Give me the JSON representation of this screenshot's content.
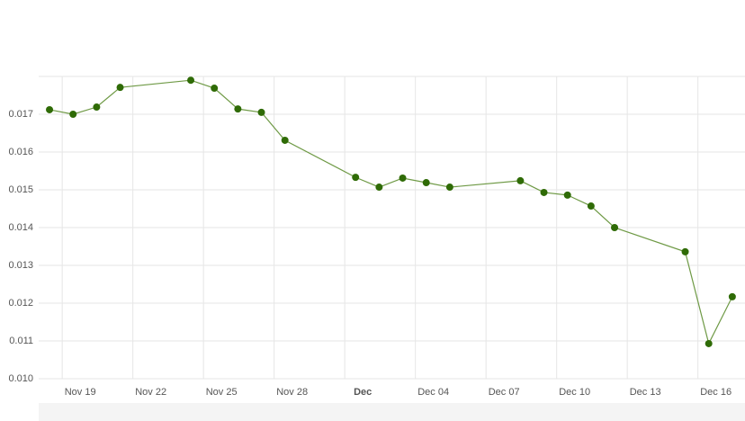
{
  "chart_data": {
    "type": "line",
    "x": [
      "Nov 18",
      "Nov 19",
      "Nov 20",
      "Nov 21",
      "Nov 24",
      "Nov 25",
      "Nov 26",
      "Nov 27",
      "Nov 28",
      "Dec 01",
      "Dec 02",
      "Dec 03",
      "Dec 04",
      "Dec 05",
      "Dec 08",
      "Dec 09",
      "Dec 10",
      "Dec 11",
      "Dec 12",
      "Dec 15",
      "Dec 16",
      "Dec 17"
    ],
    "series": [
      {
        "color": "#2f6b06",
        "values": [
          0.01712,
          0.017,
          0.01719,
          0.01771,
          0.0179,
          0.01769,
          0.01714,
          0.01705,
          0.01631,
          0.01533,
          0.01507,
          0.01531,
          0.01519,
          0.01507,
          0.01524,
          0.01493,
          0.01486,
          0.01457,
          0.014,
          0.01336,
          0.01093,
          0.01217
        ]
      }
    ],
    "xlim": [
      "Nov 18",
      "Dec 18"
    ],
    "xticks": [
      "Nov 19",
      "Nov 22",
      "Nov 25",
      "Nov 28",
      {
        "value": "Dec 01",
        "label": "Dec"
      },
      "Dec 04",
      "Dec 07",
      "Dec 10",
      "Dec 13",
      "Dec 16"
    ],
    "ylim": [
      0.01,
      0.018
    ],
    "yticks": [
      {
        "value": 0.01,
        "label": "0.010"
      },
      0.011,
      0.012,
      0.013,
      0.014,
      0.015,
      0.016,
      0.017
    ],
    "grid": true
  }
}
